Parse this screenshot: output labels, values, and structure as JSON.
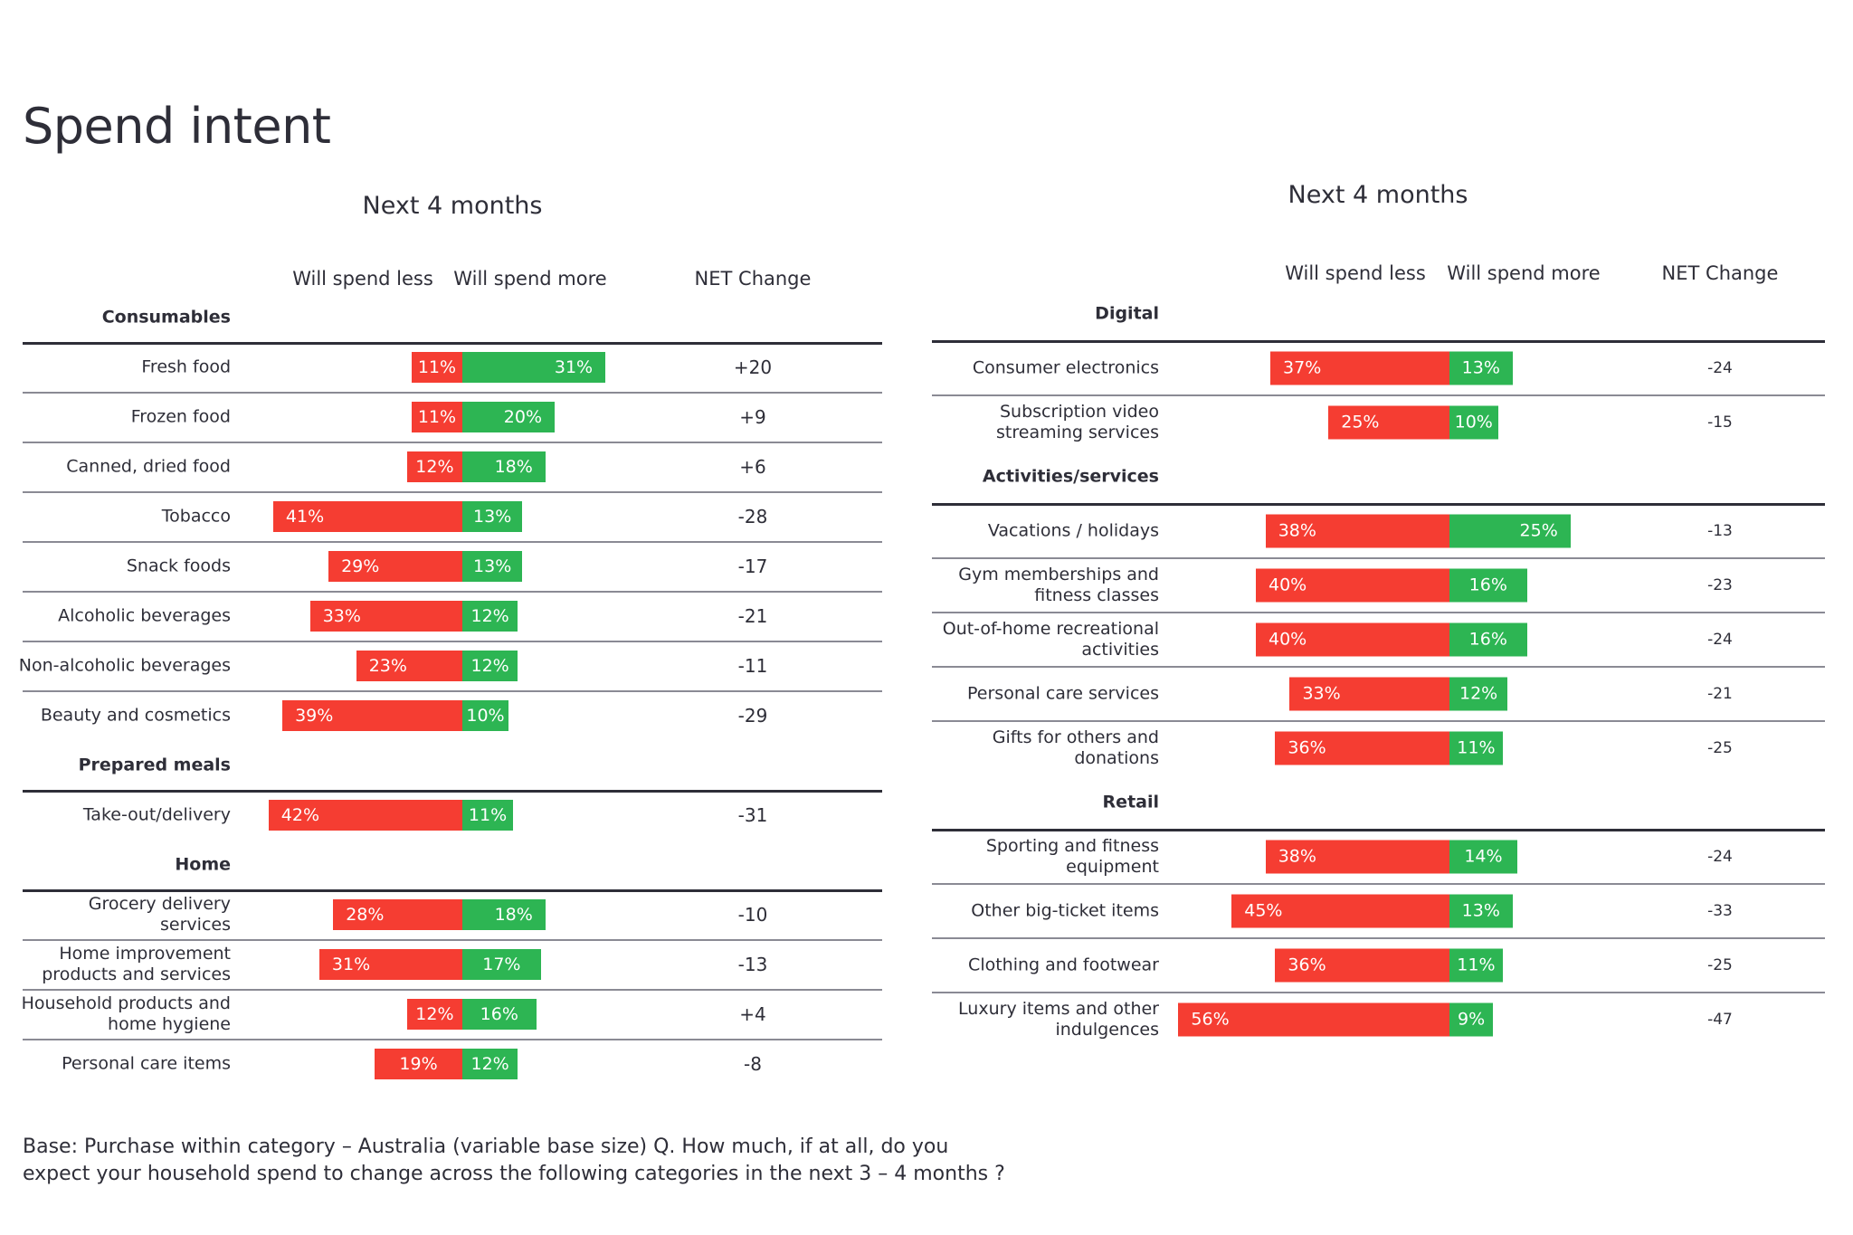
{
  "title": "Spend intent",
  "footer": [
    "Base:  Purchase within category – Australia (variable base size) Q. How much, if at all, do you",
    "expect your household spend to change across the following categories in the next 3 – 4 months ?"
  ],
  "colors": {
    "less": "#f53d32",
    "more": "#2db553"
  },
  "chart_data": [
    {
      "type": "bar",
      "subtitle": "Next 4 months",
      "columns": [
        "Will spend less",
        "Will spend more",
        "NET Change"
      ],
      "sections": [
        {
          "name": "Consumables",
          "rows": [
            {
              "label": "Fresh food",
              "less": 11,
              "more": 31,
              "net": "+20"
            },
            {
              "label": "Frozen food",
              "less": 11,
              "more": 20,
              "net": "+9"
            },
            {
              "label": "Canned, dried food",
              "less": 12,
              "more": 18,
              "net": "+6"
            },
            {
              "label": "Tobacco",
              "less": 41,
              "more": 13,
              "net": "-28"
            },
            {
              "label": "Snack foods",
              "less": 29,
              "more": 13,
              "net": "-17"
            },
            {
              "label": "Alcoholic beverages",
              "less": 33,
              "more": 12,
              "net": "-21"
            },
            {
              "label": "Non-alcoholic beverages",
              "less": 23,
              "more": 12,
              "net": "-11"
            },
            {
              "label": "Beauty and cosmetics",
              "less": 39,
              "more": 10,
              "net": "-29"
            }
          ]
        },
        {
          "name": "Prepared meals",
          "rows": [
            {
              "label": "Take-out/delivery",
              "less": 42,
              "more": 11,
              "net": "-31"
            }
          ]
        },
        {
          "name": "Home",
          "rows": [
            {
              "label": "Grocery delivery\nservices",
              "less": 28,
              "more": 18,
              "net": "-10"
            },
            {
              "label": "Home improvement\nproducts and services",
              "less": 31,
              "more": 17,
              "net": "-13"
            },
            {
              "label": "Household products and\nhome hygiene",
              "less": 12,
              "more": 16,
              "net": "+4"
            },
            {
              "label": "Personal care items",
              "less": 19,
              "more": 12,
              "net": "-8"
            }
          ]
        }
      ]
    },
    {
      "type": "bar",
      "subtitle": "Next 4 months",
      "columns": [
        "Will spend less",
        "Will spend more",
        "NET Change"
      ],
      "sections": [
        {
          "name": "Digital",
          "rows": [
            {
              "label": "Consumer electronics",
              "less": 37,
              "more": 13,
              "net": "-24"
            },
            {
              "label": "Subscription video\nstreaming services",
              "less": 25,
              "more": 10,
              "net": "-15"
            }
          ]
        },
        {
          "name": "Activities/services",
          "rows": [
            {
              "label": "Vacations / holidays",
              "less": 38,
              "more": 25,
              "net": "-13"
            },
            {
              "label": "Gym memberships and\nfitness classes",
              "less": 40,
              "more": 16,
              "net": "-23"
            },
            {
              "label": "Out-of-home recreational\nactivities",
              "less": 40,
              "more": 16,
              "net": "-24"
            },
            {
              "label": "Personal care services",
              "less": 33,
              "more": 12,
              "net": "-21"
            },
            {
              "label": "Gifts for others and\ndonations",
              "less": 36,
              "more": 11,
              "net": "-25"
            }
          ]
        },
        {
          "name": "Retail",
          "rows": [
            {
              "label": "Sporting and fitness\nequipment",
              "less": 38,
              "more": 14,
              "net": "-24"
            },
            {
              "label": "Other big-ticket items",
              "less": 45,
              "more": 13,
              "net": "-33"
            },
            {
              "label": "Clothing and footwear",
              "less": 36,
              "more": 11,
              "net": "-25"
            },
            {
              "label": "Luxury items and other\nindulgences",
              "less": 56,
              "more": 9,
              "net": "-47"
            }
          ]
        }
      ]
    }
  ]
}
